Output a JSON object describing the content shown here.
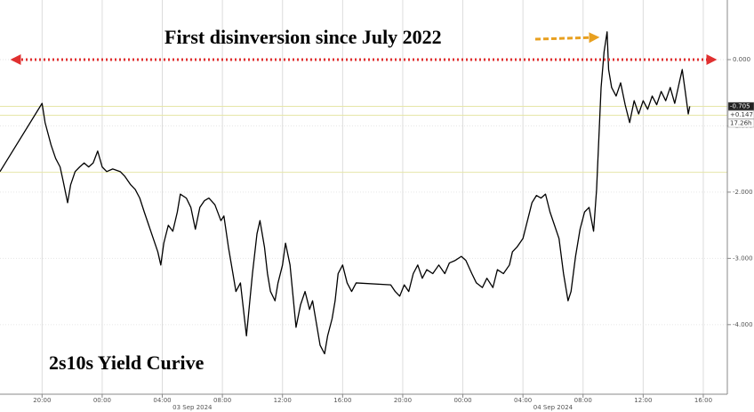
{
  "chart_data": {
    "type": "line",
    "annotations": [
      "First disinversion since July 2022",
      "2s10s Yield Curive"
    ],
    "x": [
      17.2,
      20,
      20.2,
      20.6,
      20.9,
      21.2,
      21.4,
      21.7,
      21.9,
      22.2,
      22.5,
      22.8,
      23.1,
      23.4,
      23.7,
      24.0,
      24.3,
      24.7,
      25.2,
      25.5,
      25.9,
      26.2,
      26.5,
      26.8,
      27.1,
      27.4,
      27.7,
      27.9,
      28.1,
      28.4,
      28.7,
      29.0,
      29.2,
      29.6,
      29.9,
      30.2,
      30.5,
      30.8,
      31.1,
      31.5,
      31.9,
      32.1,
      32.4,
      32.7,
      32.9,
      33.2,
      33.4,
      33.6,
      33.8,
      34.0,
      34.3,
      34.5,
      34.8,
      35.0,
      35.2,
      35.5,
      35.7,
      36.0,
      36.2,
      36.5,
      36.7,
      36.9,
      37.2,
      37.5,
      37.8,
      38.0,
      38.3,
      38.5,
      38.8,
      39.0,
      39.3,
      39.5,
      39.7,
      40.0,
      40.3,
      40.6,
      40.9,
      43.2,
      43.5,
      43.8,
      44.1,
      44.4,
      44.7,
      45.0,
      45.3,
      45.6,
      46.0,
      46.4,
      46.8,
      47.1,
      47.5,
      47.9,
      48.2,
      48.6,
      48.9,
      49.3,
      49.6,
      50.0,
      50.3,
      50.7,
      51.1,
      51.3,
      51.6,
      52.0,
      52.3,
      52.6,
      52.9,
      53.2,
      53.5,
      53.8,
      54.1,
      54.4,
      54.7,
      55.0,
      55.2,
      55.5,
      55.8,
      56.1,
      56.4,
      56.7,
      56.9,
      57.2,
      57.4,
      57.6,
      57.7,
      57.9,
      58.2,
      58.5,
      58.8,
      59.1,
      59.4,
      59.7,
      60.0,
      60.3,
      60.6,
      60.9,
      61.2,
      61.5,
      61.8,
      62.1,
      62.4,
      62.6,
      62.8,
      63.0,
      63.1
    ],
    "series": [
      {
        "color": "#000000",
        "values": [
          -1.69,
          -0.66,
          -0.95,
          -1.29,
          -1.49,
          -1.62,
          -1.83,
          -2.16,
          -1.89,
          -1.69,
          -1.62,
          -1.56,
          -1.62,
          -1.56,
          -1.38,
          -1.62,
          -1.69,
          -1.65,
          -1.69,
          -1.76,
          -1.89,
          -1.96,
          -2.09,
          -2.3,
          -2.5,
          -2.7,
          -2.9,
          -3.1,
          -2.77,
          -2.5,
          -2.59,
          -2.3,
          -2.03,
          -2.09,
          -2.23,
          -2.56,
          -2.23,
          -2.13,
          -2.09,
          -2.19,
          -2.43,
          -2.36,
          -2.83,
          -3.23,
          -3.5,
          -3.37,
          -3.77,
          -4.17,
          -3.7,
          -3.23,
          -2.63,
          -2.43,
          -2.83,
          -3.23,
          -3.5,
          -3.64,
          -3.37,
          -3.1,
          -2.77,
          -3.1,
          -3.57,
          -4.04,
          -3.7,
          -3.5,
          -3.77,
          -3.64,
          -4.04,
          -4.31,
          -4.44,
          -4.17,
          -3.91,
          -3.64,
          -3.23,
          -3.1,
          -3.37,
          -3.5,
          -3.37,
          -3.4,
          -3.5,
          -3.57,
          -3.4,
          -3.5,
          -3.23,
          -3.1,
          -3.3,
          -3.17,
          -3.23,
          -3.1,
          -3.23,
          -3.07,
          -3.03,
          -2.97,
          -3.03,
          -3.23,
          -3.37,
          -3.44,
          -3.3,
          -3.44,
          -3.17,
          -3.23,
          -3.1,
          -2.9,
          -2.83,
          -2.7,
          -2.43,
          -2.16,
          -2.05,
          -2.09,
          -2.03,
          -2.3,
          -2.5,
          -2.7,
          -3.23,
          -3.64,
          -3.5,
          -2.97,
          -2.56,
          -2.3,
          -2.23,
          -2.59,
          -1.96,
          -0.42,
          0.12,
          0.42,
          -0.15,
          -0.42,
          -0.55,
          -0.35,
          -0.68,
          -0.95,
          -0.62,
          -0.82,
          -0.62,
          -0.75,
          -0.55,
          -0.68,
          -0.48,
          -0.62,
          -0.42,
          -0.66,
          -0.35,
          -0.15,
          -0.48,
          -0.82,
          -0.705
        ]
      }
    ],
    "xlim": [
      17.2,
      65.6
    ],
    "xticks": [
      {
        "value": 20,
        "label": "20:00"
      },
      {
        "value": 24,
        "label": "00:00"
      },
      {
        "value": 28,
        "label": "04:00"
      },
      {
        "value": 32,
        "label": "08:00"
      },
      {
        "value": 36,
        "label": "12:00"
      },
      {
        "value": 40,
        "label": "16:00"
      },
      {
        "value": 44,
        "label": "20:00"
      },
      {
        "value": 48,
        "label": "00:00"
      },
      {
        "value": 52,
        "label": "04:00"
      },
      {
        "value": 56,
        "label": "08:00"
      },
      {
        "value": 60,
        "label": "12:00"
      },
      {
        "value": 64,
        "label": "16:00"
      }
    ],
    "date_labels": [
      {
        "value": 30,
        "label": "03 Sep 2024"
      },
      {
        "value": 54,
        "label": "04 Sep 2024"
      }
    ],
    "ylim": [
      -5.05,
      0.9
    ],
    "yticks": [
      {
        "value": 0,
        "label": "0.000"
      },
      {
        "value": -1,
        "label": "-1.000"
      },
      {
        "value": -2,
        "label": "-2.000"
      },
      {
        "value": -3,
        "label": "-3.000"
      },
      {
        "value": -4,
        "label": "-4.000"
      }
    ],
    "reference_lines": [
      -0.705,
      -0.84,
      -1.7
    ],
    "last_value_labels": [
      "-0.705",
      "+0.147",
      "17.26h"
    ],
    "grid": true
  }
}
